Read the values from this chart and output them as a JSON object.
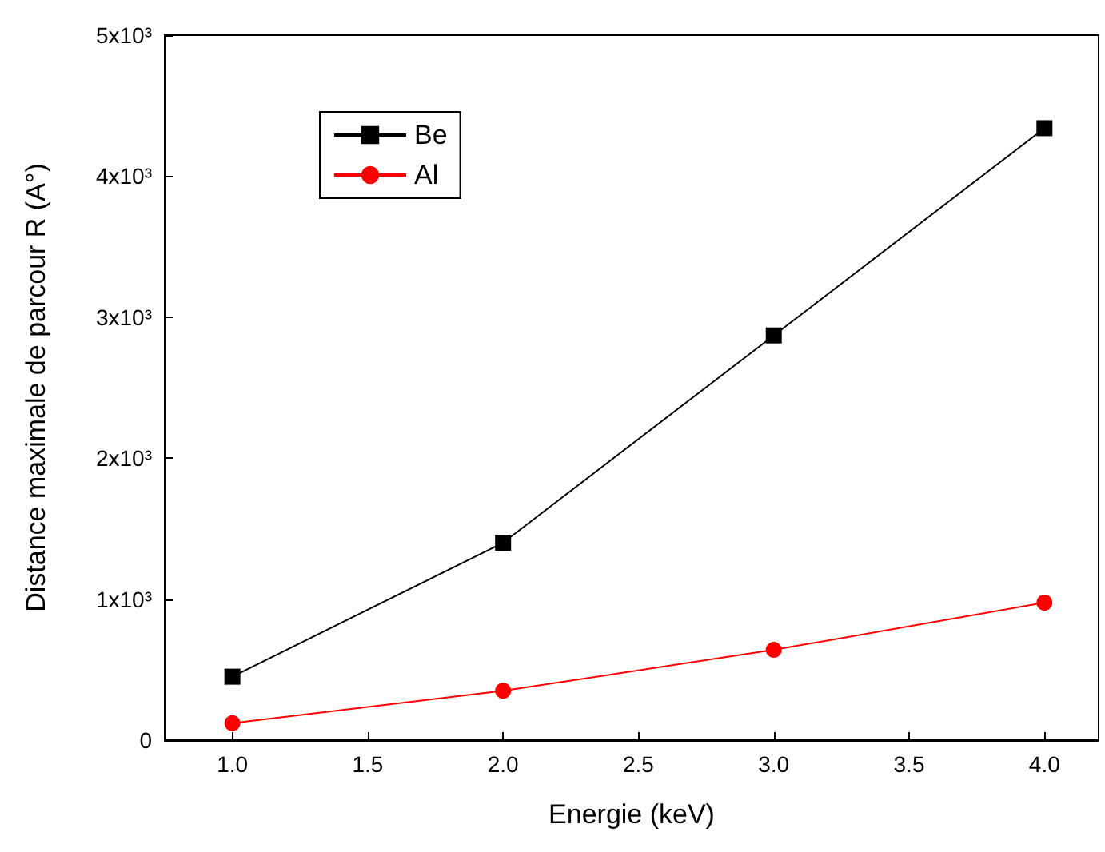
{
  "chart_data": {
    "type": "line",
    "xlabel": "Energie (keV)",
    "ylabel": "Distance maximale de parcour R (A°)",
    "x": [
      1.0,
      2.0,
      3.0,
      4.0
    ],
    "series": [
      {
        "name": "Be",
        "color": "#000000",
        "marker": "square",
        "values": [
          450,
          1400,
          2870,
          4340
        ]
      },
      {
        "name": "Al",
        "color": "#ff0000",
        "marker": "circle",
        "values": [
          120,
          350,
          640,
          975
        ]
      }
    ],
    "xlim": [
      0.75,
      4.2
    ],
    "xticks": [
      {
        "value": 1.0,
        "label": "1.0"
      },
      {
        "value": 1.5,
        "label": "1.5"
      },
      {
        "value": 2.0,
        "label": "2.0"
      },
      {
        "value": 2.5,
        "label": "2.5"
      },
      {
        "value": 3.0,
        "label": "3.0"
      },
      {
        "value": 3.5,
        "label": "3.5"
      },
      {
        "value": 4.0,
        "label": "4.0"
      }
    ],
    "ylim": [
      0,
      5000
    ],
    "yticks": [
      0,
      {
        "value": 1000,
        "label": "1x10³"
      },
      {
        "value": 2000,
        "label": "2x10³"
      },
      {
        "value": 3000,
        "label": "3x10³"
      },
      {
        "value": 4000,
        "label": "4x10³"
      },
      {
        "value": 5000,
        "label": "5x10³"
      }
    ],
    "legend": "top left",
    "grid": false,
    "line_style": "solid"
  }
}
